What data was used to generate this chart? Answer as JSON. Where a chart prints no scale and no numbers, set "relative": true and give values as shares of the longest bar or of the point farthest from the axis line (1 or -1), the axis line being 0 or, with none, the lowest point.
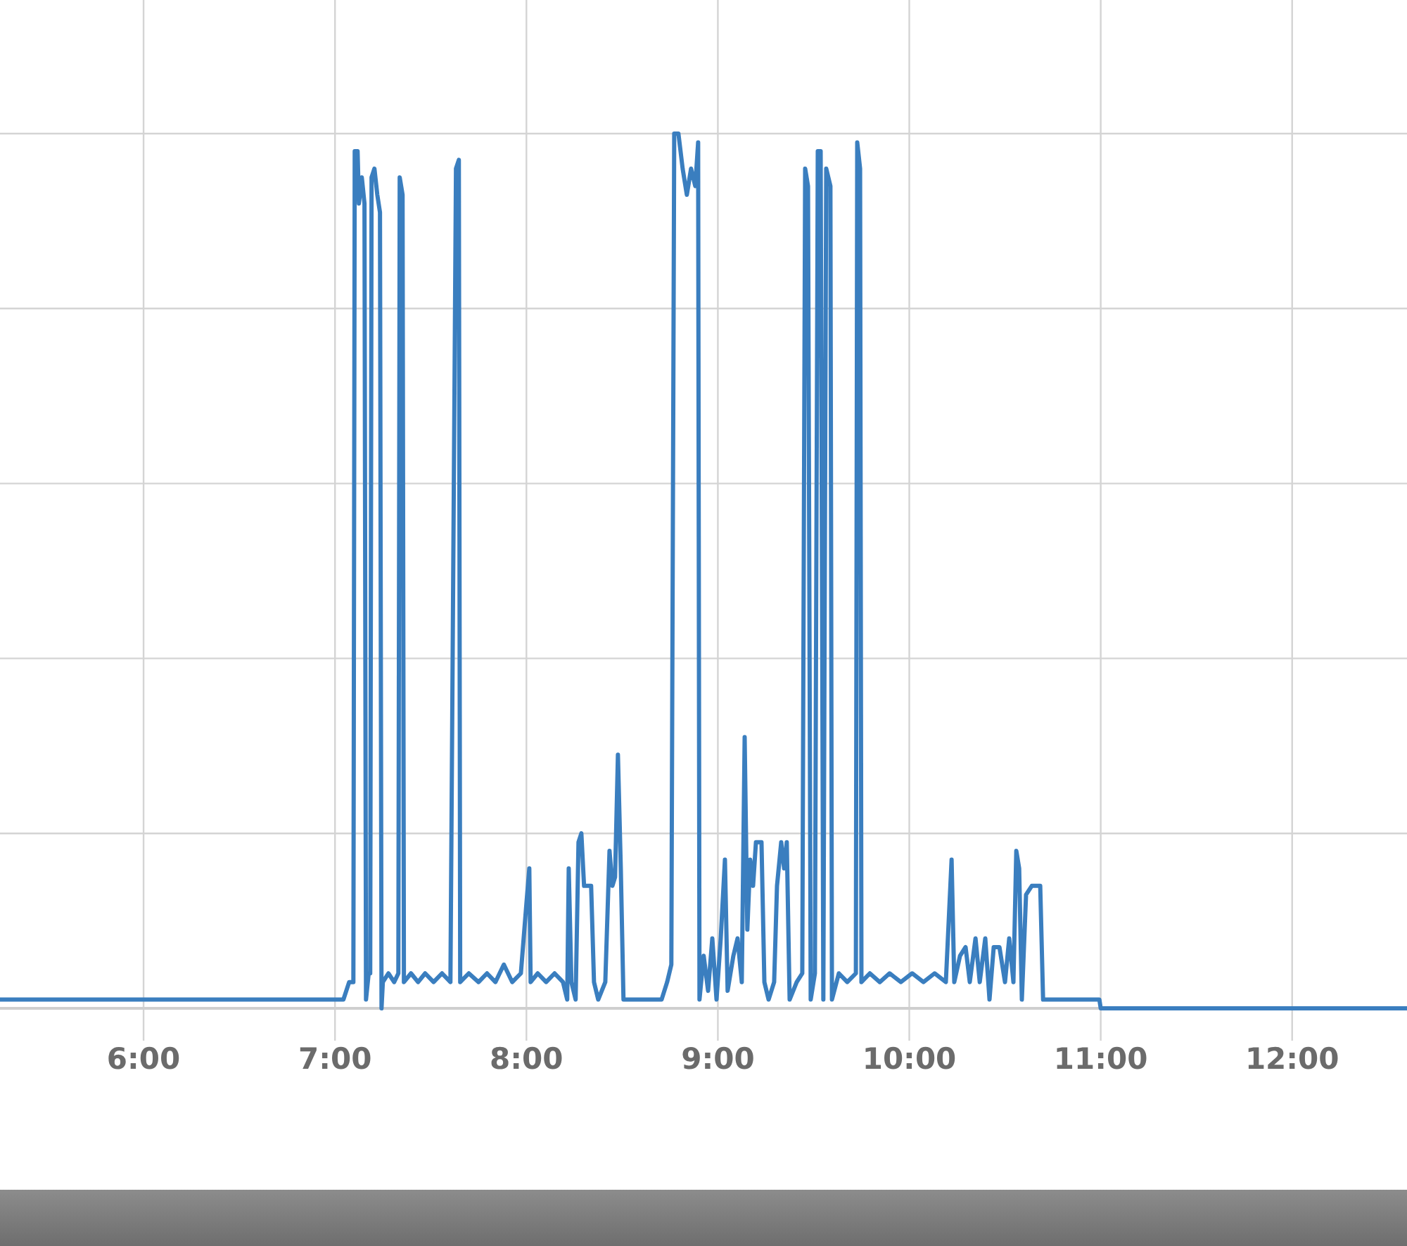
{
  "chart_data": {
    "type": "line",
    "relative": true,
    "grid": true,
    "xlim": [
      5.25,
      12.6
    ],
    "xticks": [
      {
        "value": 6,
        "label": "6:00"
      },
      {
        "value": 7,
        "label": "7:00"
      },
      {
        "value": 8,
        "label": "8:00"
      },
      {
        "value": 9,
        "label": "9:00"
      },
      {
        "value": 10,
        "label": "10:00"
      },
      {
        "value": 11,
        "label": "11:00"
      },
      {
        "value": 12,
        "label": "12:00"
      }
    ],
    "series": [
      {
        "color": "#3a7ebf",
        "x": [
          5.25,
          7.044,
          7.074,
          7.096,
          7.103,
          7.118,
          7.125,
          7.14,
          7.154,
          7.162,
          7.176,
          7.184,
          7.191,
          7.206,
          7.221,
          7.235,
          7.243,
          7.25,
          7.279,
          7.309,
          7.331,
          7.338,
          7.353,
          7.36,
          7.397,
          7.434,
          7.471,
          7.515,
          7.559,
          7.603,
          7.632,
          7.647,
          7.654,
          7.699,
          7.75,
          7.794,
          7.838,
          7.882,
          7.926,
          7.971,
          8.0,
          8.015,
          8.022,
          8.059,
          8.103,
          8.147,
          8.191,
          8.213,
          8.221,
          8.235,
          8.257,
          8.272,
          8.287,
          8.301,
          8.338,
          8.353,
          8.375,
          8.412,
          8.434,
          8.449,
          8.463,
          8.478,
          8.493,
          8.507,
          8.706,
          8.735,
          8.757,
          8.772,
          8.794,
          8.816,
          8.838,
          8.86,
          8.882,
          8.897,
          8.904,
          8.926,
          8.949,
          8.971,
          8.993,
          9.015,
          9.037,
          9.051,
          9.081,
          9.103,
          9.125,
          9.14,
          9.154,
          9.169,
          9.184,
          9.199,
          9.228,
          9.243,
          9.265,
          9.294,
          9.309,
          9.331,
          9.346,
          9.36,
          9.375,
          9.412,
          9.441,
          9.456,
          9.471,
          9.485,
          9.507,
          9.522,
          9.537,
          9.551,
          9.566,
          9.588,
          9.596,
          9.632,
          9.676,
          9.721,
          9.728,
          9.743,
          9.75,
          9.794,
          9.846,
          9.897,
          9.956,
          10.015,
          10.074,
          10.132,
          10.191,
          10.221,
          10.235,
          10.265,
          10.294,
          10.316,
          10.346,
          10.368,
          10.397,
          10.419,
          10.441,
          10.471,
          10.5,
          10.522,
          10.544,
          10.559,
          10.574,
          10.588,
          10.61,
          10.64,
          10.662,
          10.684,
          10.699,
          10.985,
          10.993,
          11.0,
          12.6
        ],
        "values": [
          0.01,
          0.01,
          0.03,
          0.03,
          0.98,
          0.98,
          0.92,
          0.95,
          0.92,
          0.01,
          0.04,
          0.04,
          0.95,
          0.96,
          0.93,
          0.91,
          0,
          0.03,
          0.04,
          0.03,
          0.04,
          0.95,
          0.93,
          0.03,
          0.04,
          0.03,
          0.04,
          0.03,
          0.04,
          0.03,
          0.96,
          0.97,
          0.03,
          0.04,
          0.03,
          0.04,
          0.03,
          0.05,
          0.03,
          0.04,
          0.12,
          0.16,
          0.03,
          0.04,
          0.03,
          0.04,
          0.03,
          0.01,
          0.16,
          0.03,
          0.01,
          0.19,
          0.2,
          0.14,
          0.14,
          0.03,
          0.01,
          0.03,
          0.18,
          0.14,
          0.15,
          0.29,
          0.16,
          0.01,
          0.01,
          0.03,
          0.05,
          1,
          1,
          0.96,
          0.93,
          0.96,
          0.94,
          0.99,
          0.01,
          0.06,
          0.02,
          0.08,
          0.01,
          0.08,
          0.17,
          0.02,
          0.06,
          0.08,
          0.03,
          0.31,
          0.09,
          0.17,
          0.14,
          0.19,
          0.19,
          0.03,
          0.01,
          0.03,
          0.14,
          0.19,
          0.16,
          0.19,
          0.01,
          0.03,
          0.04,
          0.96,
          0.94,
          0.01,
          0.04,
          0.98,
          0.98,
          0.01,
          0.96,
          0.94,
          0.01,
          0.04,
          0.03,
          0.04,
          0.99,
          0.96,
          0.03,
          0.04,
          0.03,
          0.04,
          0.03,
          0.04,
          0.03,
          0.04,
          0.03,
          0.17,
          0.03,
          0.06,
          0.07,
          0.03,
          0.08,
          0.03,
          0.08,
          0.01,
          0.07,
          0.07,
          0.03,
          0.08,
          0.03,
          0.18,
          0.16,
          0.01,
          0.13,
          0.14,
          0.14,
          0.14,
          0.01,
          0.01,
          0.01,
          0,
          0
        ]
      }
    ]
  }
}
